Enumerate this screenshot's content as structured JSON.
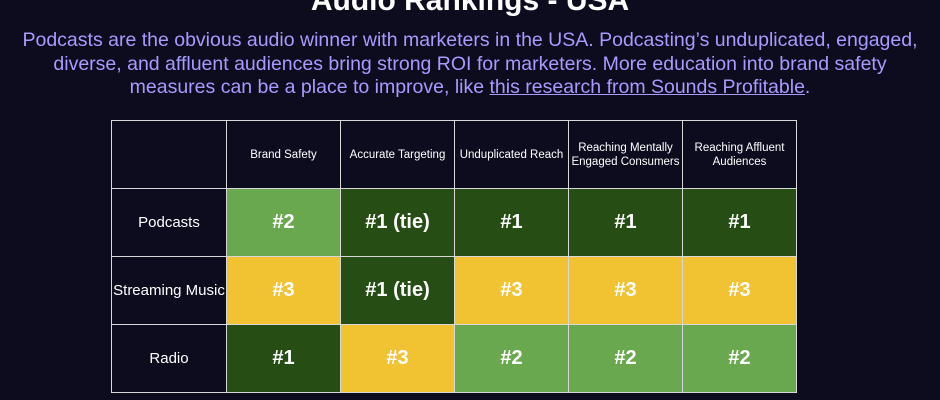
{
  "title": "Audio Rankings - USA",
  "subtitle": {
    "text": "Podcasts are the obvious audio winner with marketers in the USA.  Podcasting’s unduplicated, engaged, diverse, and affluent audiences bring strong ROI for marketers.  More education into brand safety measures can be a place to improve, like ",
    "link": "this research from Sounds Profitable",
    "end": "."
  },
  "colors": {
    "rank1": "#264d14",
    "rank2": "#6aa84f",
    "rank3": "#f1c232",
    "background": "#0d0c1f",
    "subtitle": "#a79bff"
  },
  "table": {
    "columns": [
      "Brand Safety",
      "Accurate Targeting",
      "Unduplicated Reach",
      "Reaching Mentally Engaged Consumers",
      "Reaching Affluent Audiences"
    ],
    "rows": [
      {
        "label": "Podcasts",
        "values": [
          "#2",
          "#1 (tie)",
          "#1",
          "#1",
          "#1"
        ]
      },
      {
        "label": "Streaming Music",
        "values": [
          "#3",
          "#1 (tie)",
          "#3",
          "#3",
          "#3"
        ]
      },
      {
        "label": "Radio",
        "values": [
          "#1",
          "#3",
          "#2",
          "#2",
          "#2"
        ]
      }
    ]
  }
}
